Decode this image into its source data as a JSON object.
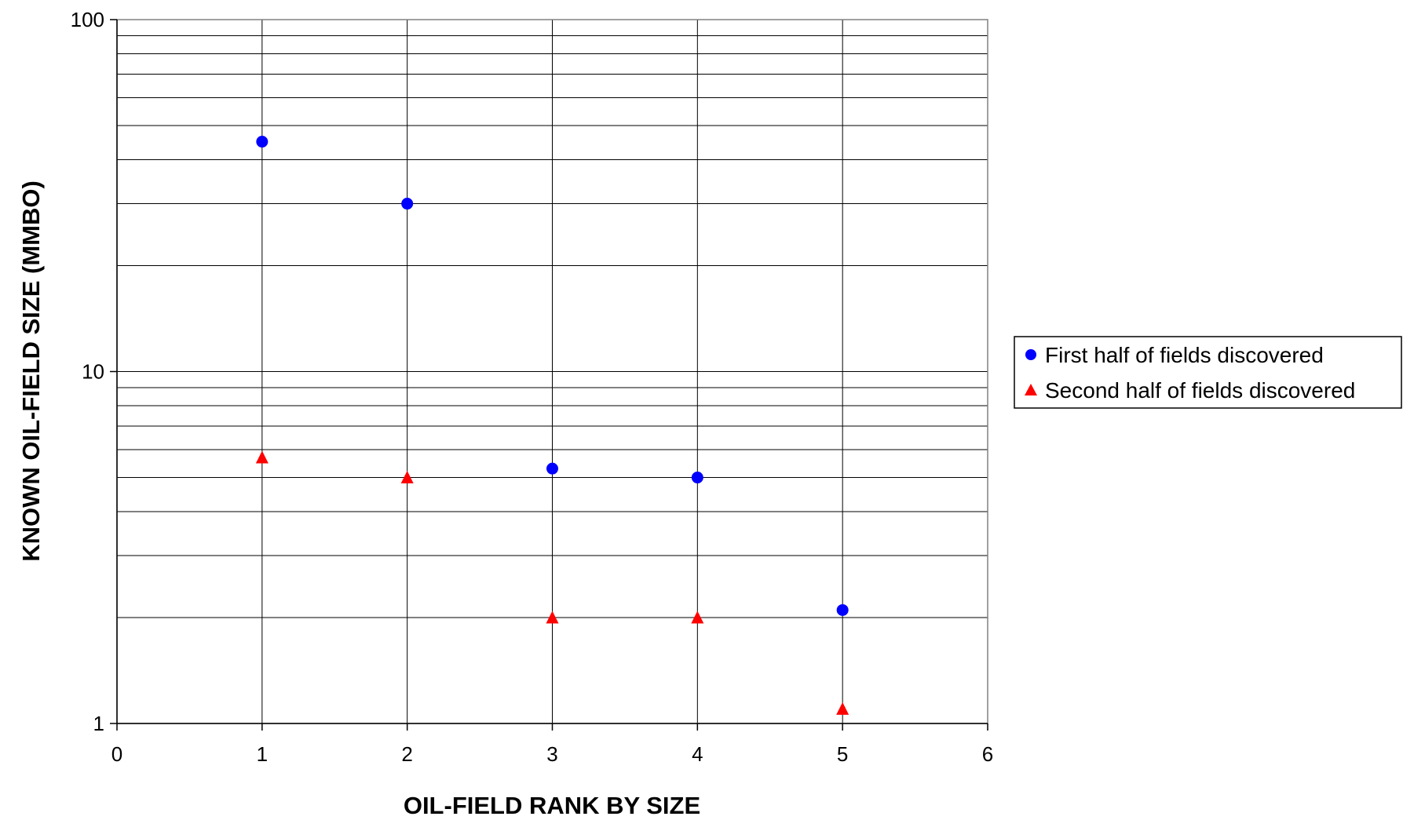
{
  "chart_data": {
    "type": "scatter",
    "title": "",
    "xlabel": "OIL-FIELD RANK BY SIZE",
    "ylabel": "KNOWN OIL-FIELD SIZE (MMBO)",
    "xlim": [
      0,
      6
    ],
    "ylim": [
      1,
      100
    ],
    "y_scale": "log",
    "x_ticks": [
      "0",
      "1",
      "2",
      "3",
      "4",
      "5",
      "6"
    ],
    "y_ticks": [
      "1",
      "10",
      "100"
    ],
    "grid": true,
    "legend_position": "right",
    "series": [
      {
        "name": "First half of fields discovered",
        "marker": "circle",
        "color": "#0000ff",
        "x": [
          1,
          2,
          3,
          4,
          5
        ],
        "y": [
          45,
          30,
          5.3,
          5.0,
          2.1
        ]
      },
      {
        "name": "Second half of fields discovered",
        "marker": "triangle",
        "color": "#ff0000",
        "x": [
          1,
          2,
          3,
          4,
          5
        ],
        "y": [
          5.7,
          5.0,
          2.0,
          2.0,
          1.1
        ]
      }
    ]
  }
}
